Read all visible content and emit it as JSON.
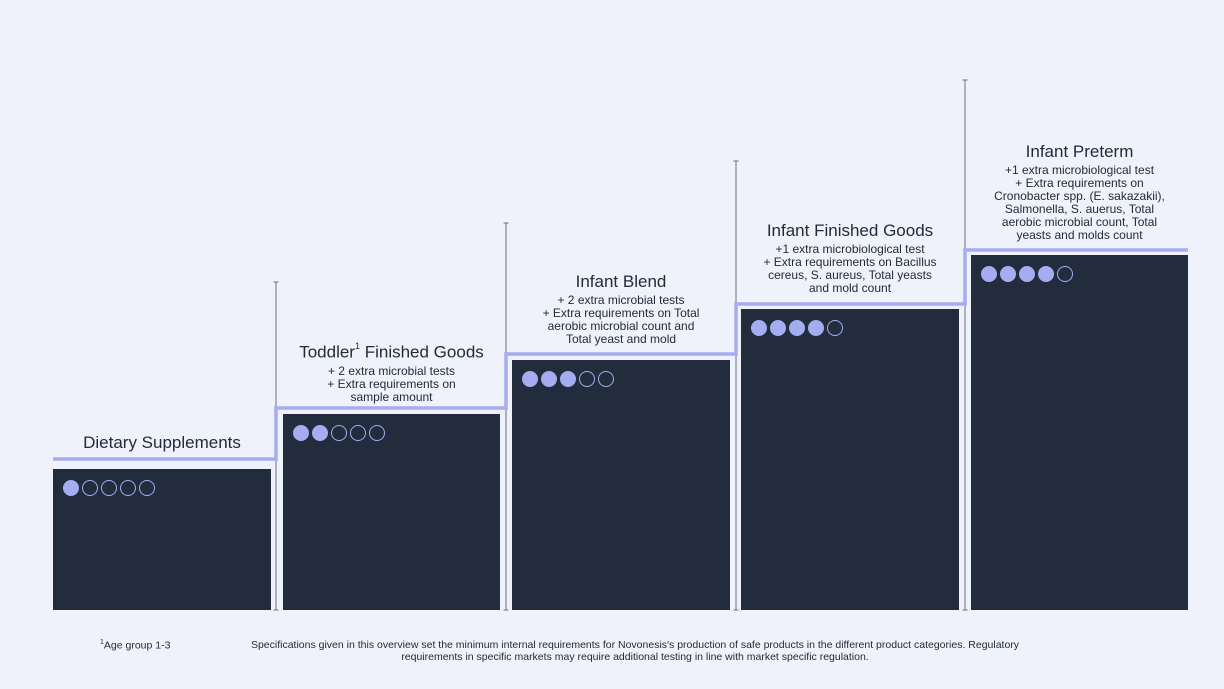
{
  "colors": {
    "background": "#eff1fb",
    "block": "#232c3d",
    "accent": "#a5adf0",
    "text": "#222b3b"
  },
  "categories": [
    {
      "title": "Dietary Supplements",
      "superscript": "",
      "title_suffix": "",
      "lines": [],
      "rating": 1,
      "max_rating": 5
    },
    {
      "title": "Toddler",
      "superscript": "1",
      "title_suffix": " Finished Goods",
      "lines": [
        "+ 2 extra microbial tests",
        "+ Extra requirements on",
        "sample amount"
      ],
      "rating": 2,
      "max_rating": 5
    },
    {
      "title": "Infant Blend",
      "superscript": "",
      "title_suffix": "",
      "lines": [
        "+ 2 extra microbial tests",
        "+ Extra requirements on Total",
        "aerobic microbial count and",
        "Total yeast and mold"
      ],
      "rating": 3,
      "max_rating": 5
    },
    {
      "title": "Infant Finished Goods",
      "superscript": "",
      "title_suffix": "",
      "lines": [
        "+1 extra microbiological test",
        "+ Extra requirements on Bacillus",
        "cereus, S. aureus, Total yeasts",
        "and mold count"
      ],
      "rating": 4,
      "max_rating": 5
    },
    {
      "title": "Infant Preterm",
      "superscript": "",
      "title_suffix": "",
      "lines": [
        "+1 extra microbiological test",
        "+ Extra requirements on",
        "Cronobacter spp. (E. sakazakii),",
        "Salmonella, S. auerus, Total",
        "aerobic microbial count, Total",
        "yeasts and molds count"
      ],
      "rating": 4,
      "max_rating": 5
    }
  ],
  "footnote": {
    "marker": "1",
    "text": "Age group 1-3"
  },
  "disclaimer": "Specifications given in this overview set the minimum internal requirements for Novonesis's production of safe products in the different product categories. Regulatory requirements in specific markets may require additional testing in line with market specific regulation."
}
